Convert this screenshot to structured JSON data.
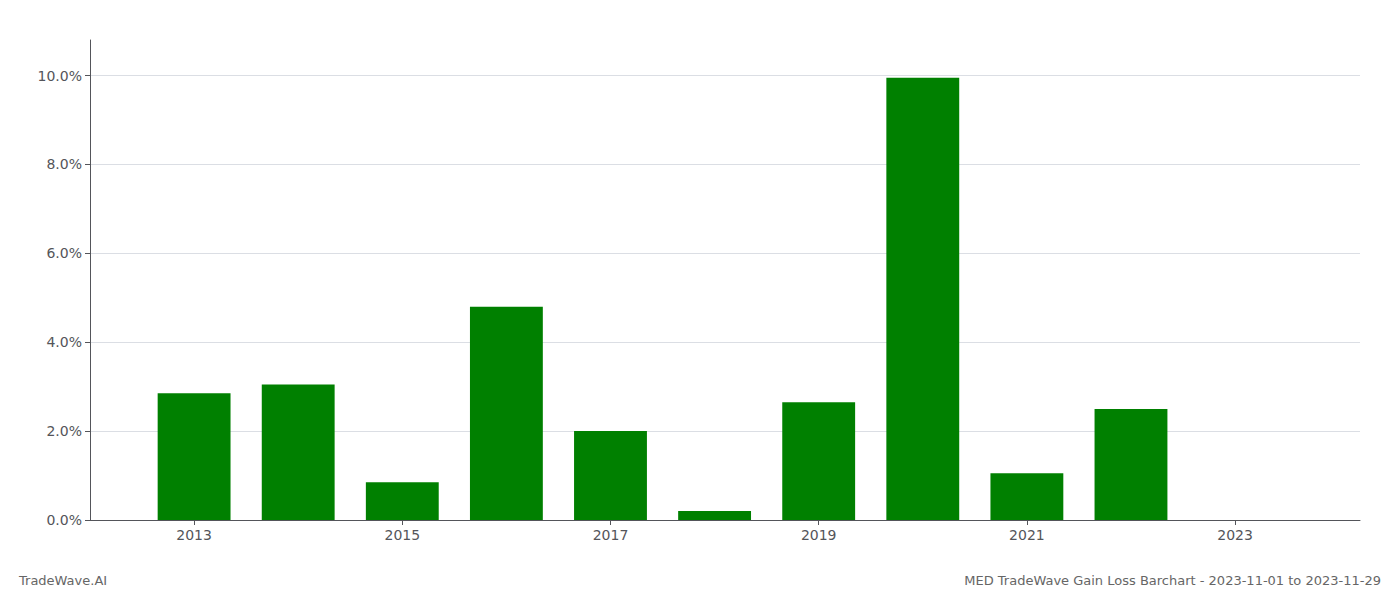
{
  "chart_data": {
    "type": "bar",
    "title": "MED TradeWave Gain Loss Barchart - 2023-11-01 to 2023-11-29",
    "annotations": [
      "TradeWave.AI"
    ],
    "x": [
      2013,
      2014,
      2015,
      2016,
      2017,
      2018,
      2019,
      2020,
      2021,
      2022,
      2023
    ],
    "values": [
      0.0285,
      0.0305,
      0.0085,
      0.048,
      0.02,
      0.002,
      0.0265,
      0.0995,
      0.0105,
      0.025,
      0.0
    ],
    "color": "#008000",
    "xlim": [
      2012.0,
      2024.2
    ],
    "xticks": [
      2013,
      2015,
      2017,
      2019,
      2021,
      2023
    ],
    "ylim": [
      0,
      0.108
    ],
    "yticks": [
      {
        "value": 0.0,
        "label": "0.0%"
      },
      {
        "value": 0.02,
        "label": "2.0%"
      },
      {
        "value": 0.04,
        "label": "4.0%"
      },
      {
        "value": 0.06,
        "label": "6.0%"
      },
      {
        "value": 0.08,
        "label": "8.0%"
      },
      {
        "value": 0.1,
        "label": "10.0%"
      }
    ],
    "grid": true
  }
}
